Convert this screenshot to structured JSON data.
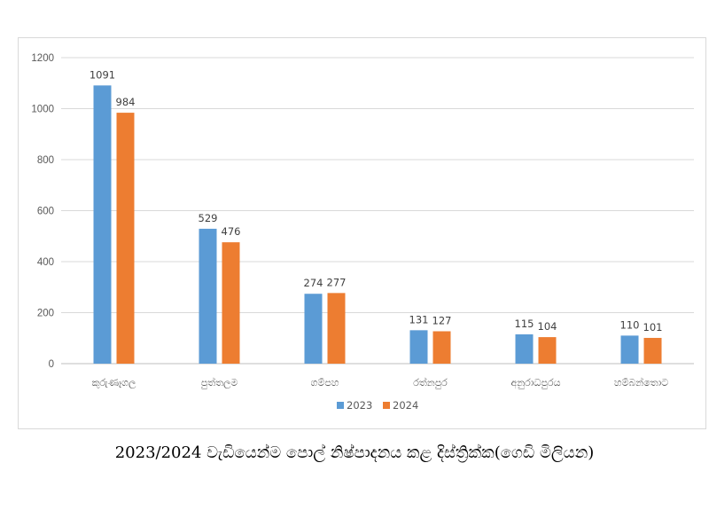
{
  "caption": "2023/2024 වැඩියෙන්ම පොල් නිෂ්පාදනය කළ දිස්ත්‍රික්ක(ගෙඩි මිලියන)",
  "chart_data": {
    "type": "bar",
    "categories": [
      "කුරුණෑගල",
      "පුත්තලම",
      "ගම්පහ",
      "රත්නපුර",
      "අනුරාධපුරය",
      "හම්බන්තොට"
    ],
    "series": [
      {
        "name": "2023",
        "color": "#5b9bd5",
        "values": [
          1091,
          529,
          274,
          131,
          115,
          110
        ]
      },
      {
        "name": "2024",
        "color": "#ed7d31",
        "values": [
          984,
          476,
          277,
          127,
          104,
          101
        ]
      }
    ],
    "ylim": [
      0,
      1200
    ],
    "yticks": [
      0,
      200,
      400,
      600,
      800,
      1000,
      1200
    ],
    "grid": true,
    "legend": "bottom",
    "data_labels": true
  }
}
